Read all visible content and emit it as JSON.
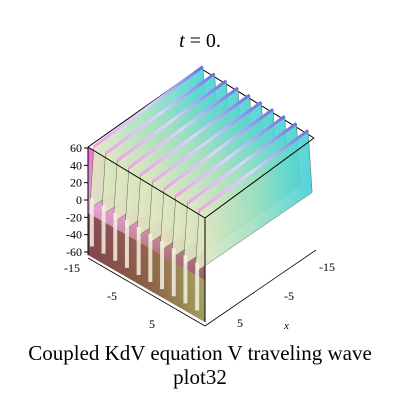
{
  "chart_data": {
    "type": "surface3d",
    "title": "t = 0.",
    "title_var": "t",
    "title_value": "= 0.",
    "caption_line1": "Coupled KdV equation V traveling wave",
    "caption_line2": "plot32",
    "x_axis_label": "x",
    "x_ticks": [
      "-15",
      "-5",
      "5"
    ],
    "y_ticks": [
      "-15",
      "-5",
      "5"
    ],
    "z_ticks": [
      "60",
      "40",
      "20",
      "0",
      "-20",
      "-40",
      "-60"
    ],
    "z_range": [
      -60,
      60
    ],
    "peaks_count": 10,
    "colormap": [
      "#7a3a4a",
      "#e070c8",
      "#f0e0c0",
      "#ffffff",
      "#a0c060",
      "#60e0d0",
      "#7070e0"
    ]
  }
}
